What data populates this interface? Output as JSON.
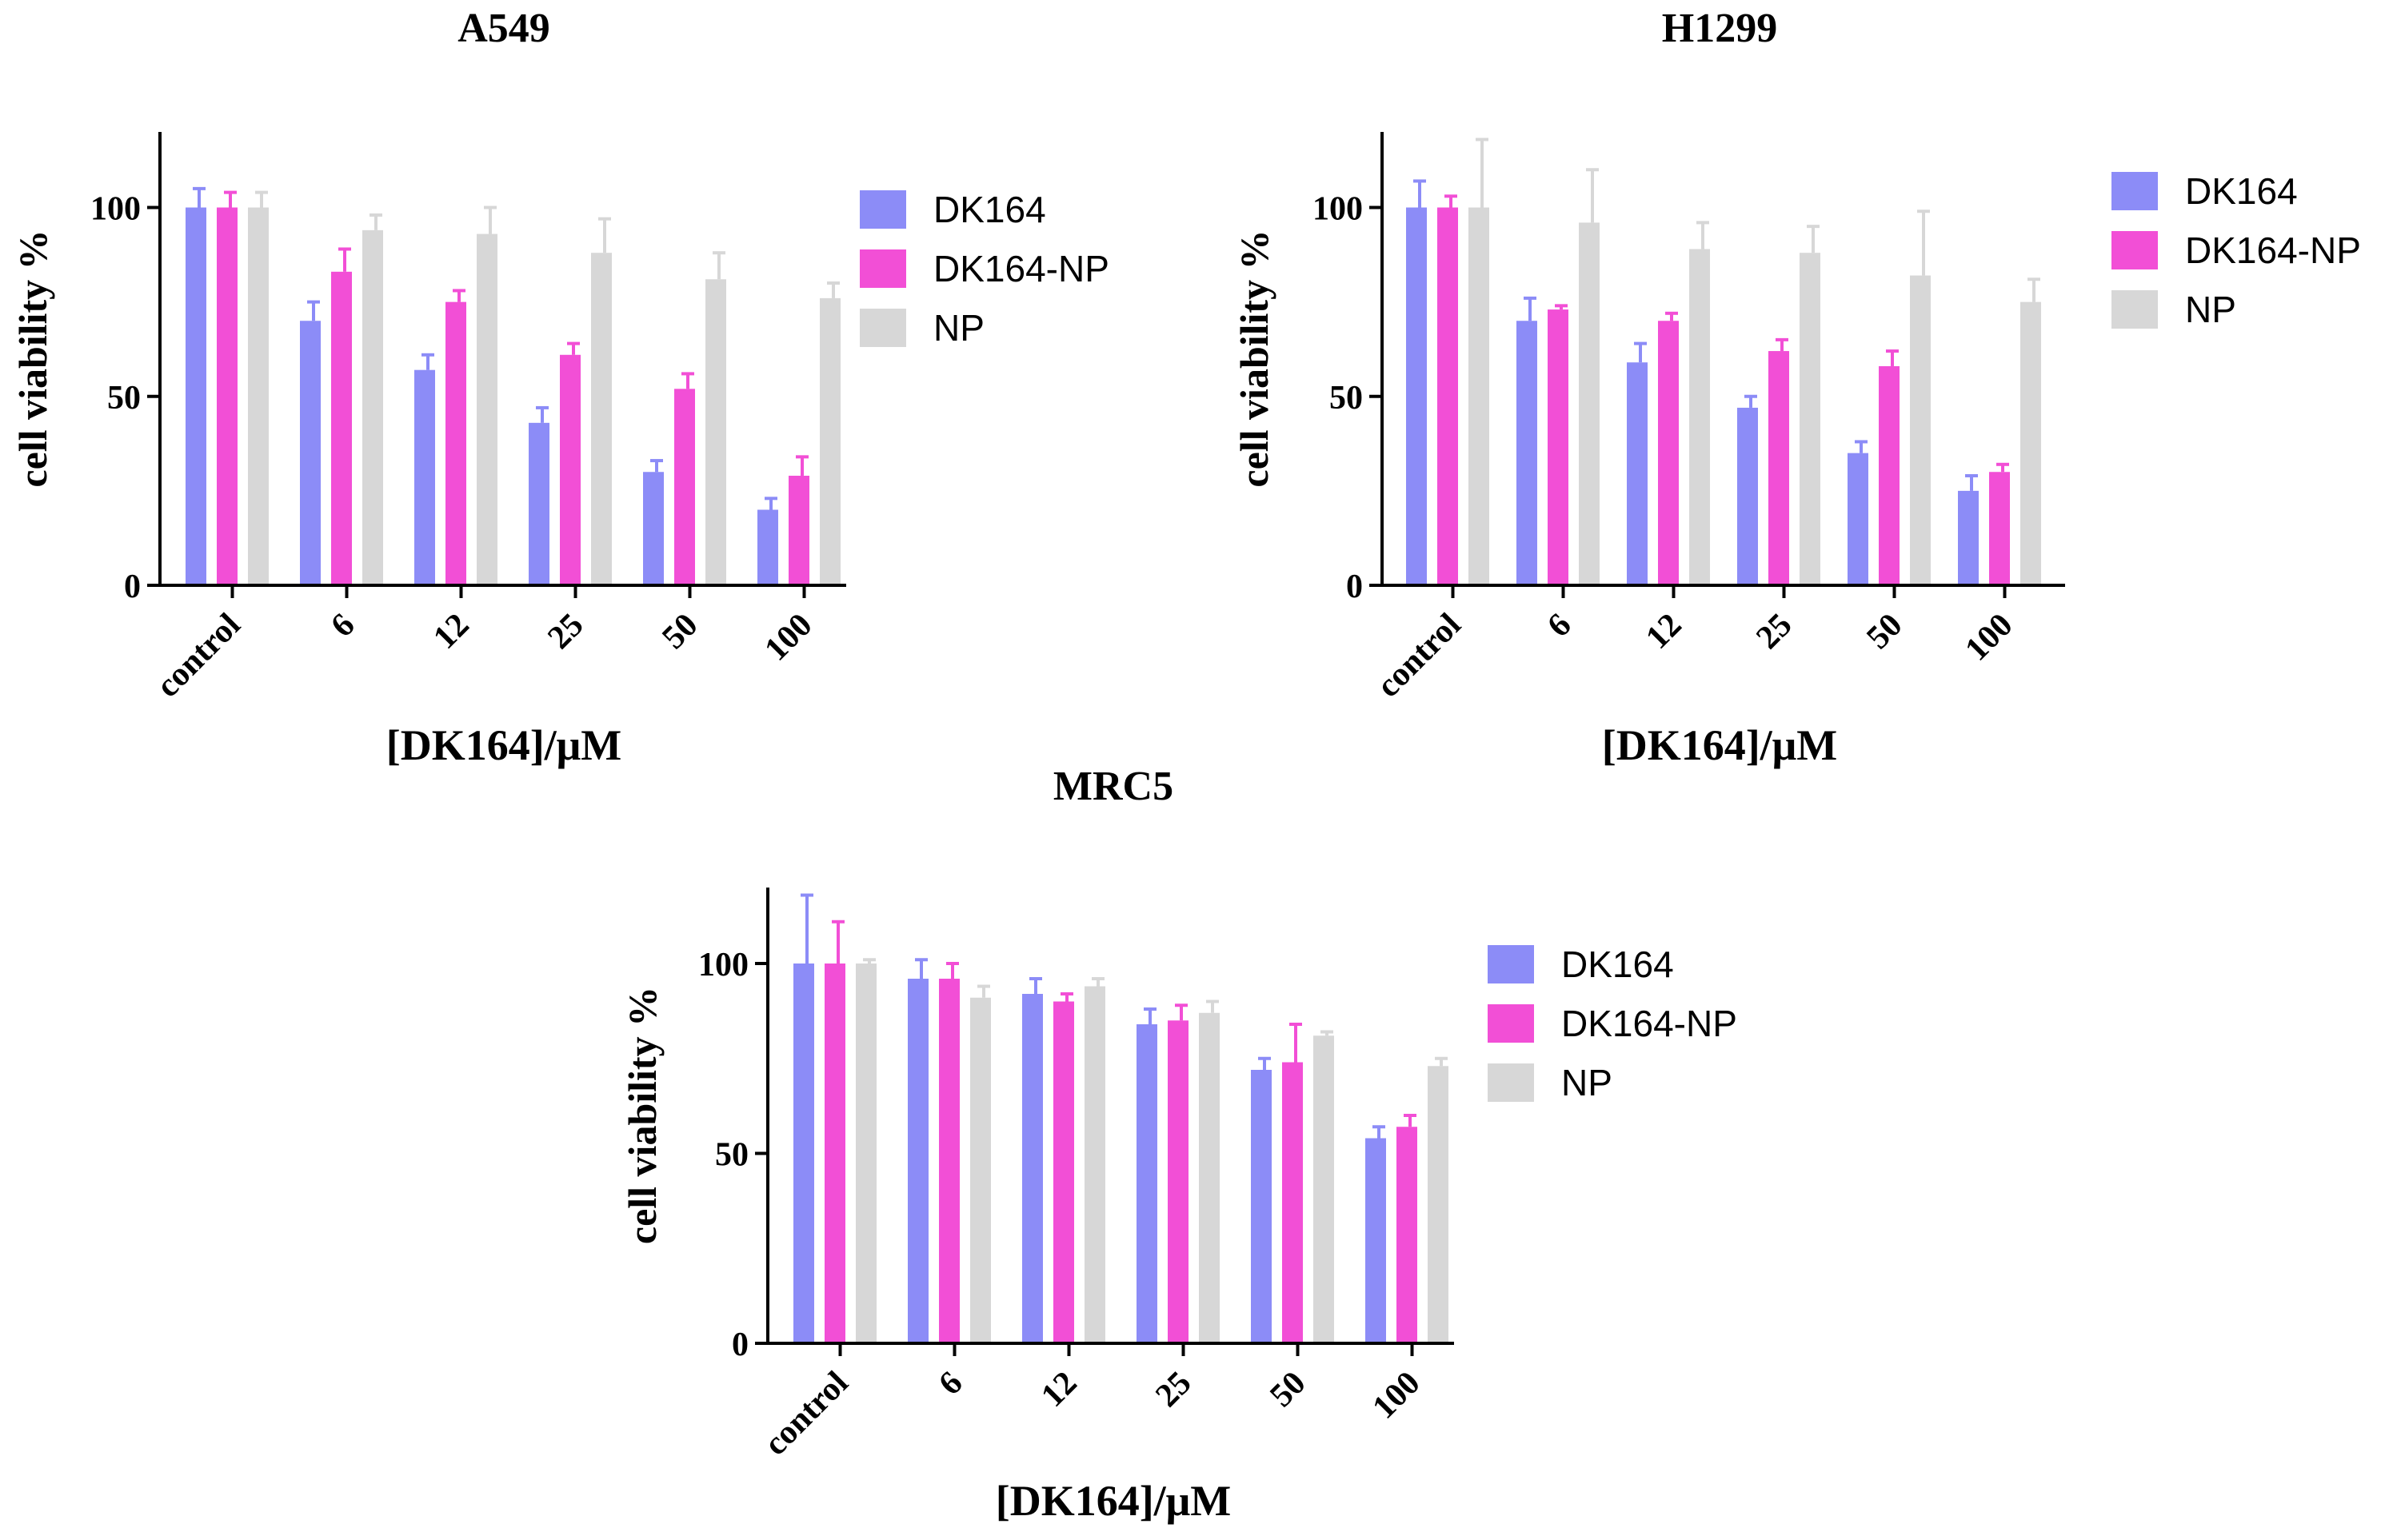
{
  "chart_data": [
    {
      "type": "bar",
      "title": "A549",
      "xlabel": "[DK164]/μM",
      "ylabel": "cell viability %",
      "ylim": [
        0,
        120
      ],
      "yticks": [
        0,
        50,
        100
      ],
      "categories": [
        "control",
        "6",
        "12",
        "25",
        "50",
        "100"
      ],
      "series": [
        {
          "name": "DK164",
          "color": "#8c8cf7",
          "values": [
            100,
            70,
            57,
            43,
            30,
            20
          ],
          "errors": [
            5,
            5,
            4,
            4,
            3,
            3
          ]
        },
        {
          "name": "DK164-NP",
          "color": "#f24fd6",
          "values": [
            100,
            83,
            75,
            61,
            52,
            29
          ],
          "errors": [
            4,
            6,
            3,
            3,
            4,
            5
          ]
        },
        {
          "name": "NP",
          "color": "#d7d7d7",
          "values": [
            100,
            94,
            93,
            88,
            81,
            76
          ],
          "errors": [
            4,
            4,
            7,
            9,
            7,
            4
          ]
        }
      ],
      "legend_position": "right"
    },
    {
      "type": "bar",
      "title": "H1299",
      "xlabel": "[DK164]/μM",
      "ylabel": "cell viability %",
      "ylim": [
        0,
        120
      ],
      "yticks": [
        0,
        50,
        100
      ],
      "categories": [
        "control",
        "6",
        "12",
        "25",
        "50",
        "100"
      ],
      "series": [
        {
          "name": "DK164",
          "color": "#8c8cf7",
          "values": [
            100,
            70,
            59,
            47,
            35,
            25
          ],
          "errors": [
            7,
            6,
            5,
            3,
            3,
            4
          ]
        },
        {
          "name": "DK164-NP",
          "color": "#f24fd6",
          "values": [
            100,
            73,
            70,
            62,
            58,
            30
          ],
          "errors": [
            3,
            1,
            2,
            3,
            4,
            2
          ]
        },
        {
          "name": "NP",
          "color": "#d7d7d7",
          "values": [
            100,
            96,
            89,
            88,
            82,
            75
          ],
          "errors": [
            18,
            14,
            7,
            7,
            17,
            6
          ]
        }
      ],
      "legend_position": "right"
    },
    {
      "type": "bar",
      "title": "MRC5",
      "xlabel": "[DK164]/μM",
      "ylabel": "cell viability %",
      "ylim": [
        0,
        120
      ],
      "yticks": [
        0,
        50,
        100
      ],
      "categories": [
        "control",
        "6",
        "12",
        "25",
        "50",
        "100"
      ],
      "series": [
        {
          "name": "DK164",
          "color": "#8c8cf7",
          "values": [
            100,
            96,
            92,
            84,
            72,
            54
          ],
          "errors": [
            18,
            5,
            4,
            4,
            3,
            3
          ]
        },
        {
          "name": "DK164-NP",
          "color": "#f24fd6",
          "values": [
            100,
            96,
            90,
            85,
            74,
            57
          ],
          "errors": [
            11,
            4,
            2,
            4,
            10,
            3
          ]
        },
        {
          "name": "NP",
          "color": "#d7d7d7",
          "values": [
            100,
            91,
            94,
            87,
            81,
            73
          ],
          "errors": [
            1,
            3,
            2,
            3,
            1,
            2
          ]
        }
      ],
      "legend_position": "right"
    }
  ]
}
